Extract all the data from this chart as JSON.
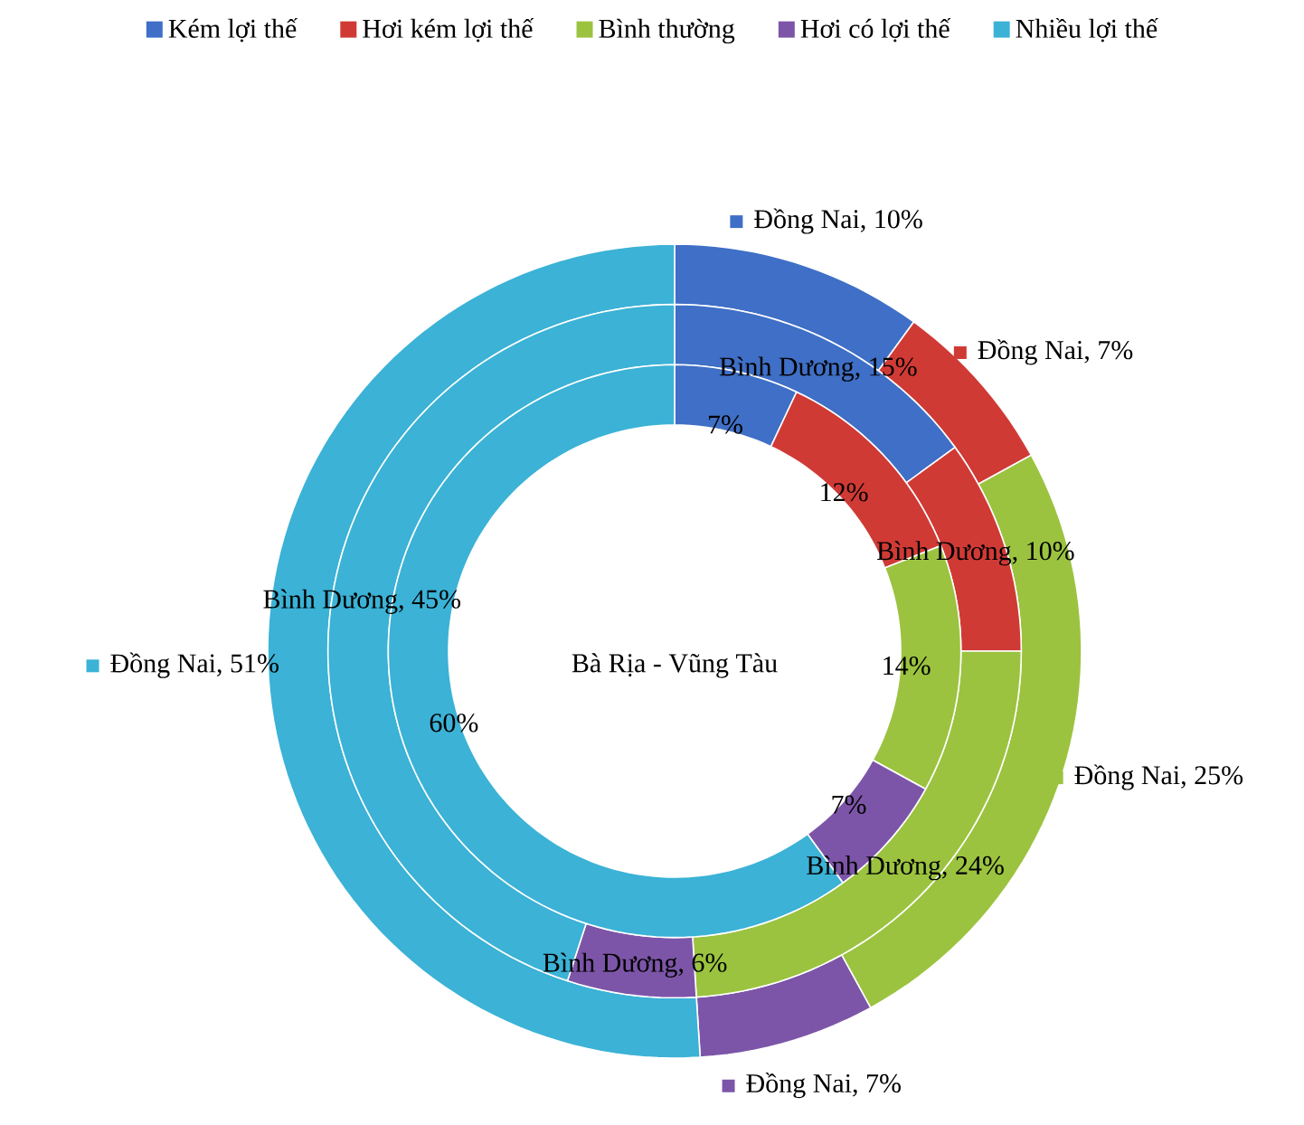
{
  "chart_data": {
    "type": "donut",
    "categories": [
      "Kém lợi thế",
      "Hơi kém lợi thế",
      "Bình thường",
      "Hơi có lợi thế",
      "Nhiều lợi thế"
    ],
    "colors": [
      "#3f6fc6",
      "#d03a35",
      "#9bc33f",
      "#7d55a8",
      "#3bb2d6"
    ],
    "series": [
      {
        "values": [
          10,
          7,
          25,
          7,
          51
        ],
        "value_labels": [
          "Đồng Nai, 10%",
          "Đồng Nai, 7%",
          "Đồng Nai, 25%",
          "Đồng Nai, 7%",
          "Đồng Nai, 51%"
        ]
      },
      {
        "values": [
          15,
          10,
          24,
          6,
          45
        ],
        "value_labels": [
          "Bình Dương, 15%",
          "Bình Dương, 10%",
          "Bình Dương, 24%",
          "Bình Dương, 6%",
          "Bình Dương, 45%"
        ]
      },
      {
        "name": "Bà Rịa - Vũng Tàu",
        "values": [
          7,
          12,
          14,
          7,
          60
        ],
        "value_labels": [
          "7%",
          "12%",
          "14%",
          "7%",
          "60%"
        ]
      }
    ],
    "data_labels": true,
    "legend": "top"
  }
}
